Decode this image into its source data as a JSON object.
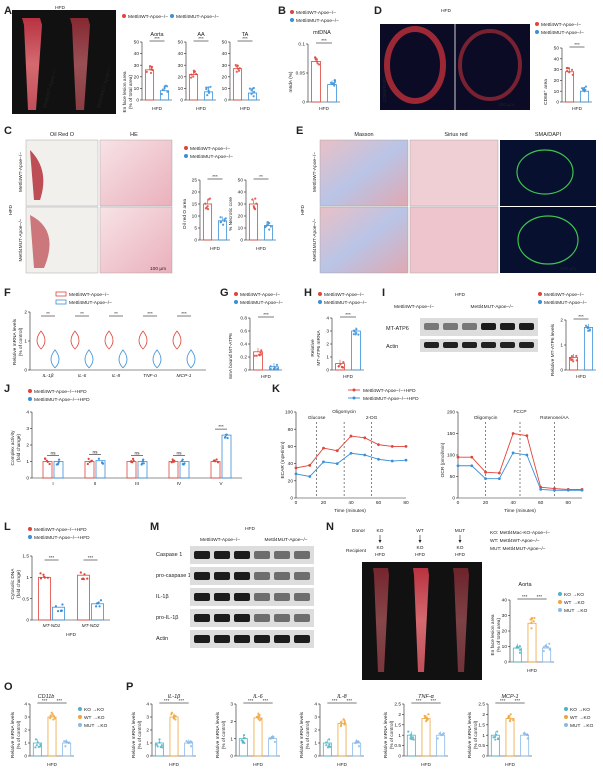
{
  "colors": {
    "wt": "#e0443a",
    "mut": "#3a8fd8",
    "ko": "#4cb3c7",
    "wt_ko": "#f1a43a",
    "mut_ko": "#8ab9e6"
  },
  "legend": {
    "wt": "Mettl4WT-Apoe−/−",
    "mut": "Mettl4MUT-Apoe−/−",
    "wt_hfd": "Mettl4WT-Apoe−/−+HFD",
    "mut_hfd": "Mettl4MUT-Apoe−/−+HFD",
    "ko_ko": "KO →KO",
    "wt_ko": "WT →KO",
    "mut_ko": "MUT →KO"
  },
  "common": {
    "hfd": "HFD",
    "sig3": "***",
    "sig2": "**",
    "ns": "ns",
    "scale": "100 μm"
  },
  "panels": {
    "A": "A",
    "B": "B",
    "C": "C",
    "D": "D",
    "E": "E",
    "F": "F",
    "G": "G",
    "H": "H",
    "I": "I",
    "J": "J",
    "K": "K",
    "L": "L",
    "M": "M",
    "N": "N",
    "O": "O",
    "P": "P"
  },
  "A": {
    "subplots": [
      "Aorta",
      "AA",
      "TA"
    ],
    "ylabel1": "En face lesion area",
    "ylabel2": "(% of total area)",
    "mouse1": "Mettl4WT-Apoe−/−",
    "mouse2": "Mettl4MUT-Apoe−/−"
  },
  "B": {
    "title": "mtDNA",
    "ylabel": "m6dA (%)"
  },
  "C": {
    "stains": [
      "Oil Red O",
      "HE"
    ],
    "ylabel1": "Oil red O area",
    "ylabel1b": "(x10⁴ μm²)",
    "ylabel2": "% Necrotic core"
  },
  "D": {
    "stain": "CD68/DAPI",
    "ylabel": "CD68⁺ area",
    "ylabel2": "(% of plaque area)"
  },
  "E": {
    "stains": [
      "Masson",
      "Sirius red",
      "SMA/DAPI"
    ]
  },
  "F": {
    "ylabel": "Relative mRNA levels",
    "ylabel2": "(% of control)",
    "genes": [
      "IL-1β",
      "IL-6",
      "IL-8",
      "TNF-α",
      "MCP-1"
    ]
  },
  "G": {
    "ylabel": "6mA bound MT-ATP6",
    "ylabel2": "(% input)"
  },
  "H": {
    "ylabel": "Relative",
    "ylabel2": "MT-ATP6 mRNA"
  },
  "I": {
    "bands": [
      "MT-ATP6",
      "Actin"
    ],
    "ylabel": "Relative MT-ATP6 levels"
  },
  "J": {
    "ylabel": "Complex activity",
    "ylabel2": "(fold change)",
    "cats": [
      "I",
      "II",
      "III",
      "IV",
      "V"
    ]
  },
  "K": {
    "ecar_label": "ECAR (mpH/min)",
    "ocr_label": "OCR (pmol/min)",
    "xlabel": "Time (minutes)",
    "ecar_inj": [
      "Glucose",
      "Oligomycin",
      "2-DG"
    ],
    "ocr_inj": [
      "Oligomycin",
      "FCCP",
      "Rotenone/AA"
    ]
  },
  "L": {
    "ylabel": "Cytosolic DNA",
    "ylabel2": "(fold change)",
    "cats": [
      "MT-ND1",
      "MT-ND2"
    ]
  },
  "M": {
    "bands": [
      "Caspase 1",
      "pro-caspase 1",
      "IL-1β",
      "pro-IL-1β",
      "Actin"
    ]
  },
  "N": {
    "donor": "Donor",
    "recipient": "Recipient",
    "donors": [
      "KO",
      "WT",
      "MUT"
    ],
    "recip": "KO",
    "hfd": "HFD",
    "key": [
      "KO: Mettl4Mac-KO-Apoe−/−",
      "WT: Mettl4WT-Apoe−/−",
      "MUT: Mettl4MUT-Apoe−/−"
    ],
    "subtitle": "Aorta",
    "ylabel": "En face lesion area",
    "ylabel2": "(% of total area)"
  },
  "O": {
    "gene": "CD11b",
    "ylabel": "Relative mRNA levels",
    "ylabel2": "(% of control)"
  },
  "P": {
    "genes": [
      "IL-1β",
      "IL-6",
      "IL-8",
      "TNF-α",
      "MCP-1"
    ],
    "ylabel": "Relative mRNA levels",
    "ylabel2": "(% of control)"
  },
  "chart_data": [
    {
      "panel": "A",
      "type": "bar",
      "categories": [
        "Mettl4WT",
        "Mettl4MUT"
      ],
      "subplots": [
        {
          "name": "Aorta",
          "values": [
            26,
            8
          ],
          "ylim": [
            0,
            50
          ],
          "ticks": [
            0,
            10,
            20,
            30,
            40,
            50
          ]
        },
        {
          "name": "AA",
          "values": [
            22,
            7
          ],
          "ylim": [
            0,
            50
          ],
          "ticks": [
            0,
            10,
            20,
            30,
            40,
            50
          ]
        },
        {
          "name": "TA",
          "values": [
            27,
            6
          ],
          "ylim": [
            0,
            50
          ],
          "ticks": [
            0,
            10,
            20,
            30,
            40,
            50
          ]
        }
      ]
    },
    {
      "panel": "B",
      "type": "bar",
      "categories": [
        "Mettl4WT",
        "Mettl4MUT"
      ],
      "values": [
        0.07,
        0.03
      ],
      "ylim": [
        0,
        0.1
      ],
      "ticks": [
        0,
        0.05,
        0.1
      ]
    },
    {
      "panel": "C",
      "type": "bar",
      "subplots": [
        {
          "name": "Oil red O area",
          "values": [
            15,
            8
          ],
          "ylim": [
            0,
            25
          ],
          "ticks": [
            0,
            5,
            10,
            15,
            20,
            25
          ]
        },
        {
          "name": "% Necrotic core",
          "values": [
            30,
            12
          ],
          "ylim": [
            0,
            50
          ],
          "ticks": [
            0,
            10,
            20,
            30,
            40,
            50
          ]
        }
      ]
    },
    {
      "panel": "D",
      "type": "bar",
      "values": [
        28,
        10
      ],
      "ylim": [
        0,
        50
      ],
      "ticks": [
        0,
        10,
        20,
        30,
        40,
        50
      ]
    },
    {
      "panel": "G",
      "type": "bar",
      "values": [
        0.28,
        0.05
      ],
      "ylim": [
        0,
        0.8
      ],
      "ticks": [
        0,
        0.2,
        0.4,
        0.6,
        0.8
      ]
    },
    {
      "panel": "H",
      "type": "bar",
      "values": [
        0.5,
        3.0
      ],
      "ylim": [
        0,
        4
      ],
      "ticks": [
        0,
        1,
        2,
        3,
        4
      ]
    },
    {
      "panel": "I",
      "type": "bar",
      "values": [
        0.5,
        1.7
      ],
      "ylim": [
        0,
        2
      ],
      "ticks": [
        0,
        1,
        2
      ]
    },
    {
      "panel": "J",
      "type": "bar",
      "categories": [
        "I",
        "II",
        "III",
        "IV",
        "V"
      ],
      "series": [
        {
          "name": "Mettl4WT-Apoe−/−+HFD",
          "values": [
            1,
            1,
            1,
            1,
            1
          ]
        },
        {
          "name": "Mettl4MUT-Apoe−/−+HFD",
          "values": [
            1.0,
            1.05,
            1.0,
            1.0,
            2.6
          ]
        }
      ],
      "ylim": [
        0,
        4
      ],
      "ticks": [
        0,
        1,
        2,
        3,
        4
      ]
    },
    {
      "panel": "K-ECAR",
      "type": "line",
      "x": [
        0,
        10,
        20,
        30,
        40,
        50,
        60,
        70,
        80
      ],
      "series": [
        {
          "name": "Mettl4WT-Apoe−/−+HFD",
          "values": [
            35,
            38,
            58,
            55,
            72,
            70,
            62,
            60,
            60
          ]
        },
        {
          "name": "Mettl4MUT-Apoe−/−+HFD",
          "values": [
            28,
            25,
            42,
            40,
            52,
            50,
            45,
            43,
            44
          ]
        }
      ],
      "ylim": [
        0,
        100
      ],
      "xlim": [
        0,
        80
      ]
    },
    {
      "panel": "K-OCR",
      "type": "line",
      "x": [
        0,
        10,
        20,
        30,
        40,
        50,
        60,
        70,
        80,
        90
      ],
      "series": [
        {
          "name": "Mettl4WT-Apoe−/−+HFD",
          "values": [
            95,
            95,
            60,
            58,
            150,
            145,
            25,
            22,
            20,
            20
          ]
        },
        {
          "name": "Mettl4MUT-Apoe−/−+HFD",
          "values": [
            75,
            75,
            45,
            45,
            105,
            100,
            20,
            18,
            18,
            18
          ]
        }
      ],
      "ylim": [
        0,
        200
      ],
      "xlim": [
        0,
        90
      ]
    },
    {
      "panel": "L",
      "type": "bar",
      "categories": [
        "MT-ND1",
        "MT-ND2"
      ],
      "series": [
        {
          "name": "Mettl4WT-Apoe−/−+HFD",
          "values": [
            1.0,
            1.05
          ]
        },
        {
          "name": "Mettl4MUT-Apoe−/−+HFD",
          "values": [
            0.3,
            0.38
          ]
        }
      ],
      "ylim": [
        0,
        1.5
      ],
      "ticks": [
        0,
        0.5,
        1.0,
        1.5
      ]
    },
    {
      "panel": "N",
      "type": "bar",
      "categories": [
        "KO →KO",
        "WT →KO",
        "MUT →KO"
      ],
      "values": [
        9,
        25,
        9
      ],
      "ylim": [
        0,
        40
      ],
      "ticks": [
        0,
        10,
        20,
        30,
        40
      ]
    },
    {
      "panel": "O",
      "type": "bar",
      "categories": [
        "KO →KO",
        "WT →KO",
        "MUT →KO"
      ],
      "values": [
        1.0,
        3.0,
        1.0
      ],
      "ylim": [
        0,
        4
      ],
      "ticks": [
        0,
        1,
        2,
        3,
        4
      ]
    },
    {
      "panel": "P",
      "type": "bar",
      "subplots": [
        {
          "name": "IL-1β",
          "values": [
            1,
            3.0,
            1
          ],
          "ylim": [
            0,
            4
          ],
          "ticks": [
            0,
            1,
            2,
            3,
            4
          ]
        },
        {
          "name": "IL-6",
          "values": [
            1,
            2.2,
            1
          ],
          "ylim": [
            0,
            3
          ],
          "ticks": [
            0,
            1,
            2,
            3
          ]
        },
        {
          "name": "IL-8",
          "values": [
            1,
            2.5,
            1
          ],
          "ylim": [
            0,
            4
          ],
          "ticks": [
            0,
            1,
            2,
            3,
            4
          ]
        },
        {
          "name": "TNF-α",
          "values": [
            1,
            1.8,
            1
          ],
          "ylim": [
            0,
            2.5
          ],
          "ticks": [
            0,
            0.5,
            1.0,
            1.5,
            2.0,
            2.5
          ]
        },
        {
          "name": "MCP-1",
          "values": [
            1,
            1.8,
            1
          ],
          "ylim": [
            0,
            2.5
          ],
          "ticks": [
            0,
            0.5,
            1.0,
            1.5,
            2.0,
            2.5
          ]
        }
      ]
    }
  ]
}
